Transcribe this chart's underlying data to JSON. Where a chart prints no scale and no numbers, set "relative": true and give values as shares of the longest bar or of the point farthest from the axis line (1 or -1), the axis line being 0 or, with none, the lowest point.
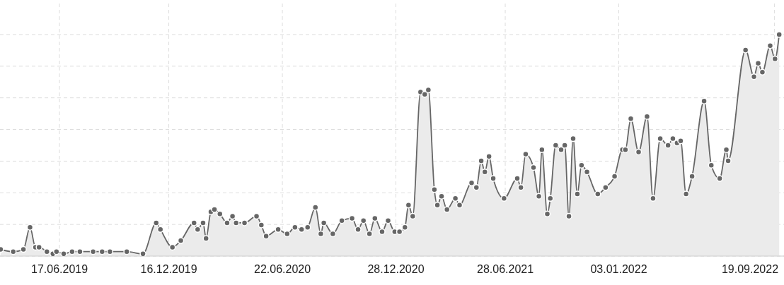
{
  "chart_data": {
    "type": "area",
    "relative": true,
    "grid": true,
    "marker": "circle",
    "xlim": [
      "2019-03-10",
      "2022-10-05"
    ],
    "xticks": [
      {
        "value": "2019-06-17",
        "label": "17.06.2019"
      },
      {
        "value": "2019-12-16",
        "label": "16.12.2019"
      },
      {
        "value": "2020-06-22",
        "label": "22.06.2020"
      },
      {
        "value": "2020-12-28",
        "label": "28.12.2020"
      },
      {
        "value": "2021-06-28",
        "label": "28.06.2021"
      },
      {
        "value": "2022-01-03",
        "label": "03.01.2022"
      },
      {
        "value": "2022-09-19",
        "label": "19.09.2022"
      }
    ],
    "x": [
      "2019-03-11",
      "2019-04-01",
      "2019-04-18",
      "2019-04-29",
      "2019-05-08",
      "2019-05-14",
      "2019-05-27",
      "2019-06-06",
      "2019-06-12",
      "2019-06-24",
      "2019-07-08",
      "2019-07-21",
      "2019-08-12",
      "2019-08-27",
      "2019-09-09",
      "2019-10-07",
      "2019-11-03",
      "2019-11-25",
      "2019-12-02",
      "2019-12-22",
      "2020-01-05",
      "2020-01-27",
      "2020-02-02",
      "2020-02-11",
      "2020-02-16",
      "2020-02-24",
      "2020-03-01",
      "2020-03-10",
      "2020-03-22",
      "2020-03-31",
      "2020-04-06",
      "2020-04-20",
      "2020-05-10",
      "2020-05-18",
      "2020-05-26",
      "2020-06-15",
      "2020-06-30",
      "2020-07-13",
      "2020-07-24",
      "2020-08-03",
      "2020-08-16",
      "2020-08-25",
      "2020-08-30",
      "2020-09-14",
      "2020-09-29",
      "2020-10-16",
      "2020-10-26",
      "2020-11-04",
      "2020-11-14",
      "2020-11-23",
      "2020-12-05",
      "2020-12-15",
      "2020-12-26",
      "2021-01-03",
      "2021-01-12",
      "2021-01-18",
      "2021-01-25",
      "2021-02-07",
      "2021-02-14",
      "2021-02-20",
      "2021-03-02",
      "2021-03-07",
      "2021-03-14",
      "2021-03-23",
      "2021-04-06",
      "2021-04-13",
      "2021-05-03",
      "2021-05-11",
      "2021-05-19",
      "2021-05-25",
      "2021-06-01",
      "2021-06-08",
      "2021-06-26",
      "2021-07-18",
      "2021-07-24",
      "2021-08-01",
      "2021-08-14",
      "2021-08-23",
      "2021-08-28",
      "2021-09-06",
      "2021-09-11",
      "2021-09-20",
      "2021-09-29",
      "2021-10-05",
      "2021-10-12",
      "2021-10-19",
      "2021-10-26",
      "2021-11-02",
      "2021-11-11",
      "2021-11-29",
      "2021-12-12",
      "2021-12-27",
      "2022-01-09",
      "2022-01-14",
      "2022-01-23",
      "2022-02-05",
      "2022-02-19",
      "2022-03-01",
      "2022-03-13",
      "2022-03-26",
      "2022-04-03",
      "2022-04-10",
      "2022-04-16",
      "2022-04-25",
      "2022-05-05",
      "2022-05-25",
      "2022-06-06",
      "2022-06-20",
      "2022-07-01",
      "2022-07-04",
      "2022-08-02",
      "2022-08-16",
      "2022-08-23",
      "2022-08-30",
      "2022-09-12",
      "2022-09-20",
      "2022-09-27"
    ],
    "series": [
      {
        "color": "#666666",
        "values": [
          0.03,
          0.02,
          0.03,
          0.13,
          0.04,
          0.04,
          0.02,
          0.01,
          0.02,
          0.01,
          0.02,
          0.02,
          0.02,
          0.02,
          0.02,
          0.02,
          0.01,
          0.15,
          0.12,
          0.04,
          0.07,
          0.15,
          0.12,
          0.15,
          0.08,
          0.2,
          0.21,
          0.19,
          0.15,
          0.18,
          0.15,
          0.15,
          0.18,
          0.14,
          0.09,
          0.12,
          0.1,
          0.13,
          0.12,
          0.13,
          0.22,
          0.1,
          0.15,
          0.1,
          0.16,
          0.17,
          0.12,
          0.16,
          0.1,
          0.17,
          0.11,
          0.16,
          0.11,
          0.11,
          0.13,
          0.23,
          0.18,
          0.74,
          0.73,
          0.75,
          0.3,
          0.23,
          0.27,
          0.21,
          0.26,
          0.23,
          0.33,
          0.31,
          0.43,
          0.38,
          0.45,
          0.35,
          0.26,
          0.35,
          0.31,
          0.46,
          0.4,
          0.27,
          0.48,
          0.19,
          0.26,
          0.5,
          0.48,
          0.5,
          0.18,
          0.53,
          0.28,
          0.41,
          0.38,
          0.28,
          0.31,
          0.36,
          0.48,
          0.48,
          0.62,
          0.47,
          0.63,
          0.26,
          0.53,
          0.5,
          0.53,
          0.51,
          0.52,
          0.28,
          0.36,
          0.7,
          0.41,
          0.35,
          0.48,
          0.43,
          0.93,
          0.81,
          0.87,
          0.83,
          0.95,
          0.89,
          1
        ]
      }
    ]
  }
}
